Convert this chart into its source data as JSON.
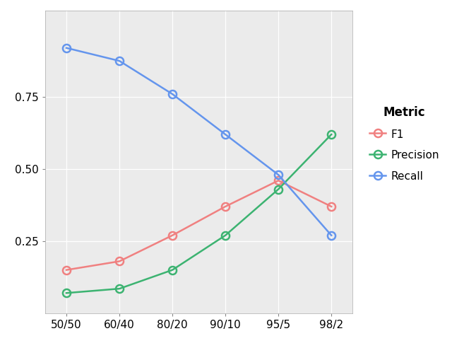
{
  "x_labels": [
    "50/50",
    "60/40",
    "80/20",
    "90/10",
    "95/5",
    "98/2"
  ],
  "f1": [
    0.15,
    0.18,
    0.27,
    0.37,
    0.46,
    0.37
  ],
  "precision": [
    0.07,
    0.085,
    0.15,
    0.27,
    0.43,
    0.62
  ],
  "recall": [
    0.92,
    0.875,
    0.76,
    0.62,
    0.48,
    0.27
  ],
  "f1_color": "#F08080",
  "precision_color": "#3CB371",
  "recall_color": "#6495ED",
  "plot_bg_color": "#EBEBEB",
  "fig_bg_color": "#FFFFFF",
  "grid_color": "#FFFFFF",
  "legend_title": "Metric",
  "legend_labels": [
    "F1",
    "Precision",
    "Recall"
  ],
  "ylim": [
    0.0,
    1.05
  ],
  "yticks": [
    0.25,
    0.5,
    0.75
  ],
  "tick_fontsize": 11,
  "legend_fontsize": 11,
  "legend_title_fontsize": 12
}
